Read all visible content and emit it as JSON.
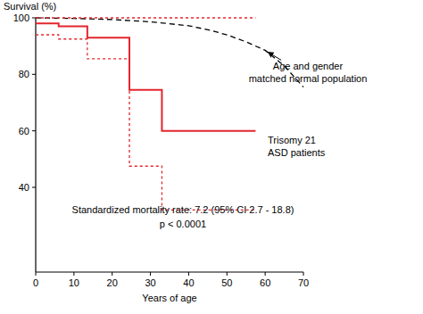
{
  "chart_data": {
    "type": "line",
    "y_label": "Survival (%)",
    "x_label": "Years of age",
    "xlim": [
      0,
      70
    ],
    "ylim": [
      10,
      100
    ],
    "xticks": [
      0,
      10,
      20,
      30,
      40,
      50,
      60,
      70
    ],
    "yticks": [
      40,
      60,
      80,
      100
    ],
    "grid": false,
    "annotations": [
      "Standardized mortality rate: 7.2 (95% CI 2.7 - 18.8)",
      "p < 0.0001"
    ],
    "series": [
      {
        "name": "Age and gender matched normal population",
        "type": "line",
        "color": "#000000",
        "line_style": "dashed",
        "x": [
          0,
          10,
          20,
          30,
          40,
          45,
          50,
          55,
          60,
          65,
          70
        ],
        "values": [
          100,
          99.8,
          99.4,
          98.6,
          97.2,
          95.8,
          94,
          91.5,
          88.5,
          83,
          75.5
        ]
      },
      {
        "name": "Trisomy 21 ASD patients",
        "type": "step",
        "color": "#e3262d",
        "line_style": "solid",
        "x": [
          0,
          6,
          13.5,
          24.5,
          33,
          57.5
        ],
        "values": [
          98,
          97,
          93,
          74.5,
          60,
          60
        ]
      },
      {
        "type": "step",
        "color": "#e3262d",
        "line_style": "dashed",
        "x": [
          0,
          6,
          13.5,
          24.5,
          33,
          57.5
        ],
        "values": [
          94,
          92.5,
          85.5,
          47.5,
          32,
          32
        ]
      },
      {
        "type": "step",
        "color": "#e3262d",
        "line_style": "dashed",
        "x": [
          0,
          57.5
        ],
        "values": [
          100,
          100
        ]
      }
    ]
  }
}
